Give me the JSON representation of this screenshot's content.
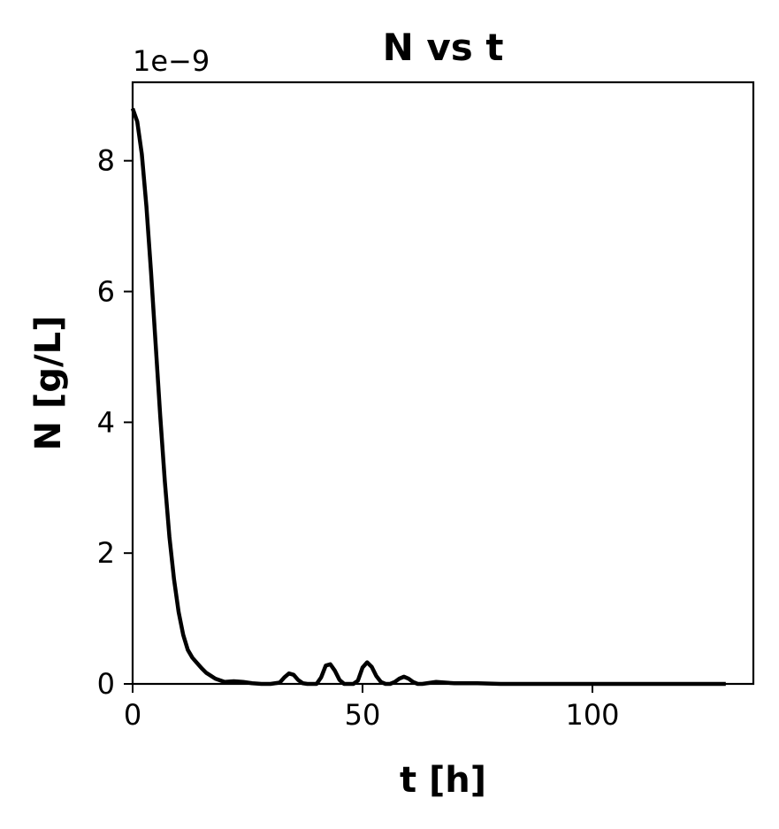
{
  "chart_data": {
    "type": "line",
    "title": "N vs t",
    "xlabel": "t [h]",
    "ylabel": "N [g/L]",
    "y_offset_label": "1e−9",
    "xlim": [
      0,
      135
    ],
    "ylim": [
      0,
      9.2
    ],
    "y_scale_factor": 1e-09,
    "x_ticks": [
      0,
      50,
      100
    ],
    "y_ticks": [
      0,
      2,
      4,
      6,
      8
    ],
    "grid": false,
    "line_color": "#000000",
    "series": [
      {
        "x": [
          0,
          1,
          2,
          3,
          4,
          5,
          6,
          7,
          8,
          9,
          10,
          11,
          12,
          13,
          14,
          15,
          16,
          18,
          20,
          22,
          24,
          26,
          28,
          30,
          32,
          33,
          34,
          35,
          36,
          37,
          38,
          40,
          41,
          42,
          43,
          44,
          45,
          46,
          47,
          48,
          49,
          50,
          51,
          52,
          53,
          54,
          55,
          56,
          57,
          58,
          59,
          60,
          61,
          62,
          63,
          64,
          66,
          68,
          70,
          75,
          80,
          90,
          100,
          110,
          120,
          129
        ],
        "values": [
          8.8,
          8.6,
          8.1,
          7.3,
          6.3,
          5.2,
          4.1,
          3.1,
          2.25,
          1.6,
          1.1,
          0.75,
          0.52,
          0.4,
          0.32,
          0.24,
          0.17,
          0.08,
          0.03,
          0.04,
          0.03,
          0.01,
          0.0,
          0.0,
          0.02,
          0.1,
          0.16,
          0.14,
          0.06,
          0.01,
          0.0,
          0.0,
          0.1,
          0.28,
          0.3,
          0.2,
          0.06,
          0.0,
          0.0,
          0.0,
          0.05,
          0.25,
          0.33,
          0.26,
          0.12,
          0.03,
          0.0,
          0.0,
          0.03,
          0.08,
          0.11,
          0.08,
          0.03,
          0.0,
          0.0,
          0.01,
          0.03,
          0.02,
          0.01,
          0.01,
          0.0,
          0.0,
          0.0,
          0.0,
          0.0,
          0.0
        ]
      }
    ]
  }
}
